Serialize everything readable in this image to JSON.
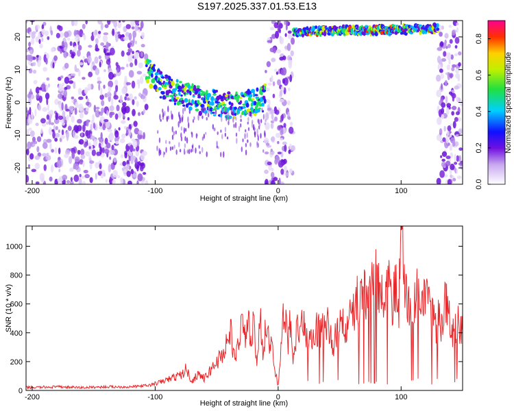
{
  "figure": {
    "title": "S197.2025.337.01.53.E13"
  },
  "colors": {
    "snr_line": "#e8272a",
    "spectrogram_base": "#8a2be2"
  },
  "chart_data": [
    {
      "type": "heatmap",
      "name": "spectrogram",
      "title": "",
      "xlabel": "Height of straight line (km)",
      "ylabel": "Frequency (Hz)",
      "xlim": [
        -205,
        150
      ],
      "ylim": [
        -25,
        25
      ],
      "xticks": [
        -200,
        -100,
        0,
        100
      ],
      "yticks": [
        -20,
        -10,
        0,
        10,
        20
      ],
      "colorbar": {
        "label": "Normalized spectral amplitude",
        "range": [
          0,
          0.9
        ],
        "ticks": [
          0.0,
          0.2,
          0.4,
          0.6,
          0.8
        ]
      },
      "noise_bands_km": [
        [
          -205,
          -107
        ],
        [
          -10,
          12
        ],
        [
          130,
          150
        ]
      ],
      "signal_tracks": [
        {
          "x": [
            -107,
            -95,
            -80,
            -60,
            -40,
            -25,
            -15,
            -10
          ],
          "freq": [
            10,
            5,
            3,
            0,
            -1,
            0,
            0.5,
            2
          ],
          "peak": 0.75
        },
        {
          "x": [
            13,
            30,
            50,
            70,
            90,
            110,
            125,
            130
          ],
          "freq": [
            21.5,
            21.8,
            22,
            22,
            22.2,
            22.3,
            22.5,
            22.8
          ],
          "peak": 0.9
        }
      ]
    },
    {
      "type": "line",
      "name": "snr",
      "title": "",
      "xlabel": "Height of straight line (km)",
      "ylabel": "SNR (10 * v/v)",
      "xlim": [
        -205,
        150
      ],
      "ylim": [
        0,
        1140
      ],
      "xticks": [
        -200,
        -100,
        0,
        100
      ],
      "yticks": [
        0,
        200,
        400,
        600,
        800,
        1000
      ],
      "series": [
        {
          "name": "SNR",
          "x": [
            -205,
            -180,
            -160,
            -140,
            -120,
            -105,
            -95,
            -85,
            -78,
            -75,
            -70,
            -65,
            -60,
            -55,
            -50,
            -45,
            -42,
            -38,
            -35,
            -30,
            -27,
            -25,
            -22,
            -20,
            -17,
            -15,
            -12,
            -10,
            -8,
            -5,
            -3,
            0,
            3,
            5,
            8,
            10,
            12,
            15,
            18,
            20,
            25,
            30,
            35,
            40,
            45,
            50,
            55,
            60,
            63,
            66,
            70,
            73,
            76,
            80,
            83,
            86,
            90,
            93,
            95,
            98,
            100,
            103,
            106,
            110,
            113,
            116,
            120,
            123,
            125,
            128,
            130,
            133,
            136,
            140,
            143,
            146,
            150
          ],
          "y": [
            20,
            25,
            20,
            25,
            25,
            35,
            60,
            90,
            110,
            150,
            60,
            120,
            80,
            140,
            200,
            250,
            330,
            400,
            180,
            480,
            350,
            500,
            330,
            450,
            160,
            550,
            260,
            480,
            350,
            300,
            150,
            40,
            400,
            520,
            330,
            480,
            250,
            420,
            380,
            470,
            320,
            440,
            400,
            460,
            310,
            480,
            420,
            520,
            600,
            650,
            700,
            560,
            720,
            760,
            680,
            600,
            740,
            500,
            780,
            560,
            1100,
            700,
            620,
            560,
            680,
            500,
            640,
            560,
            520,
            450,
            500,
            470,
            620,
            460,
            400,
            470,
            450
          ]
        }
      ]
    }
  ]
}
